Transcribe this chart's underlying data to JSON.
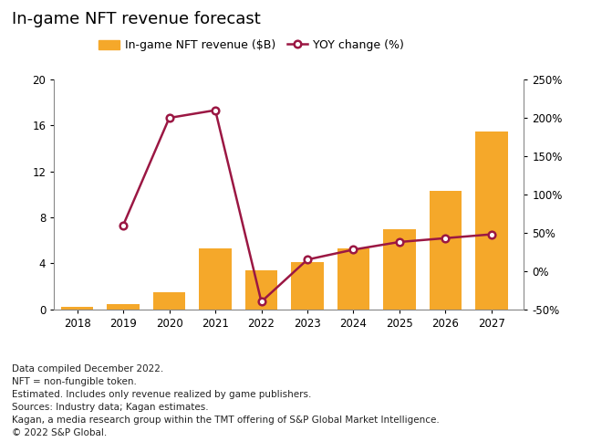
{
  "years": [
    2018,
    2019,
    2020,
    2021,
    2022,
    2023,
    2024,
    2025,
    2026,
    2027
  ],
  "revenue": [
    0.25,
    0.5,
    1.5,
    5.3,
    3.4,
    4.1,
    5.3,
    7.0,
    10.3,
    15.5
  ],
  "yoy": [
    null,
    60,
    200,
    210,
    -40,
    15,
    28,
    38,
    43,
    48
  ],
  "bar_color": "#F5A82A",
  "line_color": "#9B1743",
  "title": "In-game NFT revenue forecast",
  "legend_bar": "In-game NFT revenue ($B)",
  "legend_line": "YOY change (%)",
  "ylim_left": [
    0,
    20
  ],
  "ylim_right": [
    -50,
    250
  ],
  "yticks_left": [
    0,
    4,
    8,
    12,
    16,
    20
  ],
  "yticks_right": [
    -50,
    0,
    50,
    100,
    150,
    200,
    250
  ],
  "ytick_labels_right": [
    "-50%",
    "0%",
    "50%",
    "100%",
    "150%",
    "200%",
    "250%"
  ],
  "footnote_lines": [
    "Data compiled December 2022.",
    "NFT = non-fungible token.",
    "Estimated. Includes only revenue realized by game publishers.",
    "Sources: Industry data; Kagan estimates.",
    "Kagan, a media research group within the TMT offering of S&P Global Market Intelligence.",
    "© 2022 S&P Global."
  ],
  "background_color": "#FFFFFF",
  "title_fontsize": 13,
  "legend_fontsize": 9,
  "tick_fontsize": 8.5,
  "footnote_fontsize": 7.5
}
